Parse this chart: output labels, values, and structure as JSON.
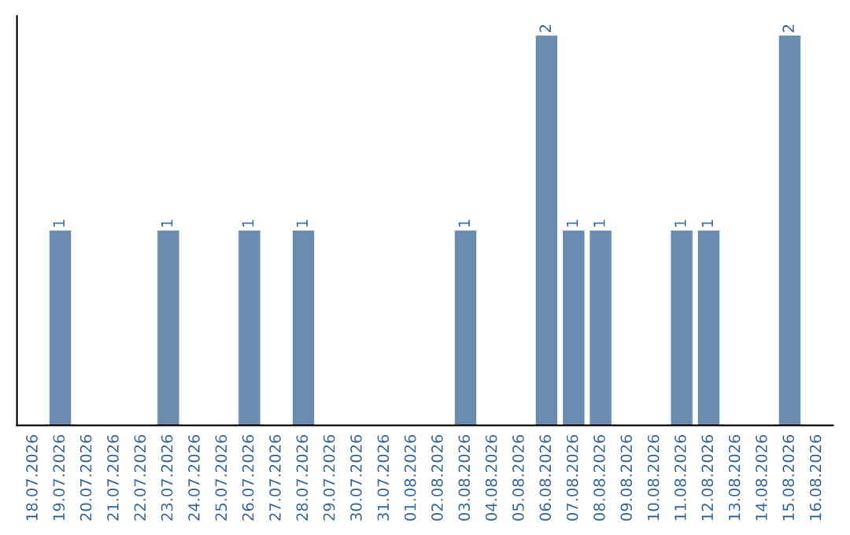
{
  "chart_data": {
    "type": "bar",
    "categories": [
      "18.07.2026",
      "19.07.2026",
      "20.07.2026",
      "21.07.2026",
      "22.07.2026",
      "23.07.2026",
      "24.07.2026",
      "25.07.2026",
      "26.07.2026",
      "27.07.2026",
      "28.07.2026",
      "29.07.2026",
      "30.07.2026",
      "31.07.2026",
      "01.08.2026",
      "02.08.2026",
      "03.08.2026",
      "04.08.2026",
      "05.08.2026",
      "06.08.2026",
      "07.08.2026",
      "08.08.2026",
      "09.08.2026",
      "10.08.2026",
      "11.08.2026",
      "12.08.2026",
      "13.08.2026",
      "14.08.2026",
      "15.08.2026",
      "16.08.2026"
    ],
    "values": [
      0,
      1,
      0,
      0,
      0,
      1,
      0,
      0,
      1,
      0,
      1,
      0,
      0,
      0,
      0,
      0,
      1,
      0,
      0,
      2,
      1,
      1,
      0,
      0,
      1,
      1,
      0,
      0,
      2,
      0
    ],
    "value_labels": [
      null,
      "1",
      null,
      null,
      null,
      "1",
      null,
      null,
      "1",
      null,
      "1",
      null,
      null,
      null,
      null,
      null,
      "1",
      null,
      null,
      "2",
      "1",
      "1",
      null,
      null,
      "1",
      "1",
      null,
      null,
      "2",
      null
    ],
    "color": "#6b8cae",
    "tick_labels": "x",
    "grid": false,
    "legend": false
  }
}
